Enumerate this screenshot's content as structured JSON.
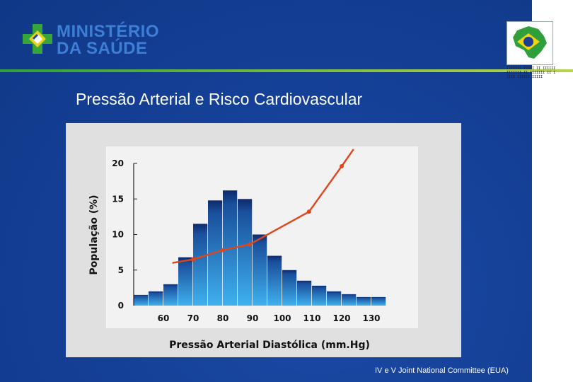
{
  "brand": {
    "line1": "MINISTÉRIO",
    "line2": "DA SAÚDE",
    "color": "#3c7fd4",
    "cross_color": "#35a53c"
  },
  "slide": {
    "title": "Pressão Arterial e Risco Cardiovascular",
    "footer": "IV e V Joint National Committee (EUA)",
    "accent": "#2f9f3c"
  },
  "chart_data": {
    "type": "bar",
    "title": "",
    "xlabel": "Pressão Arterial Diastólica (mm.Hg)",
    "ylabel": "População (%)",
    "ylim": [
      0,
      20
    ],
    "xlim": [
      50,
      135
    ],
    "yticks": [
      0,
      5,
      10,
      15,
      20
    ],
    "xticks": [
      60,
      70,
      80,
      90,
      100,
      110,
      120,
      130
    ],
    "bar_width": 5,
    "bars": {
      "x": [
        52.5,
        57.5,
        62.5,
        67.5,
        72.5,
        77.5,
        82.5,
        87.5,
        92.5,
        97.5,
        102.5,
        107.5,
        112.5,
        117.5,
        122.5,
        127.5,
        132.5
      ],
      "values": [
        1.5,
        2.0,
        3.0,
        6.8,
        11.5,
        14.8,
        16.2,
        15.0,
        10.0,
        7.0,
        5.0,
        3.5,
        2.8,
        2.0,
        1.6,
        1.2,
        1.2
      ]
    },
    "risk_curve": {
      "x": [
        63,
        70,
        80,
        89,
        109,
        120,
        124
      ],
      "values": [
        6.0,
        6.5,
        7.8,
        8.6,
        13.2,
        19.6,
        22.0
      ],
      "markers_x": [
        70,
        80,
        89,
        109,
        120
      ],
      "markers_values": [
        6.5,
        7.8,
        8.6,
        13.2,
        19.6
      ],
      "color": "#e0451c"
    },
    "bar_color_top": "#0d2a6b",
    "bar_color_bottom": "#3fb1ee"
  }
}
